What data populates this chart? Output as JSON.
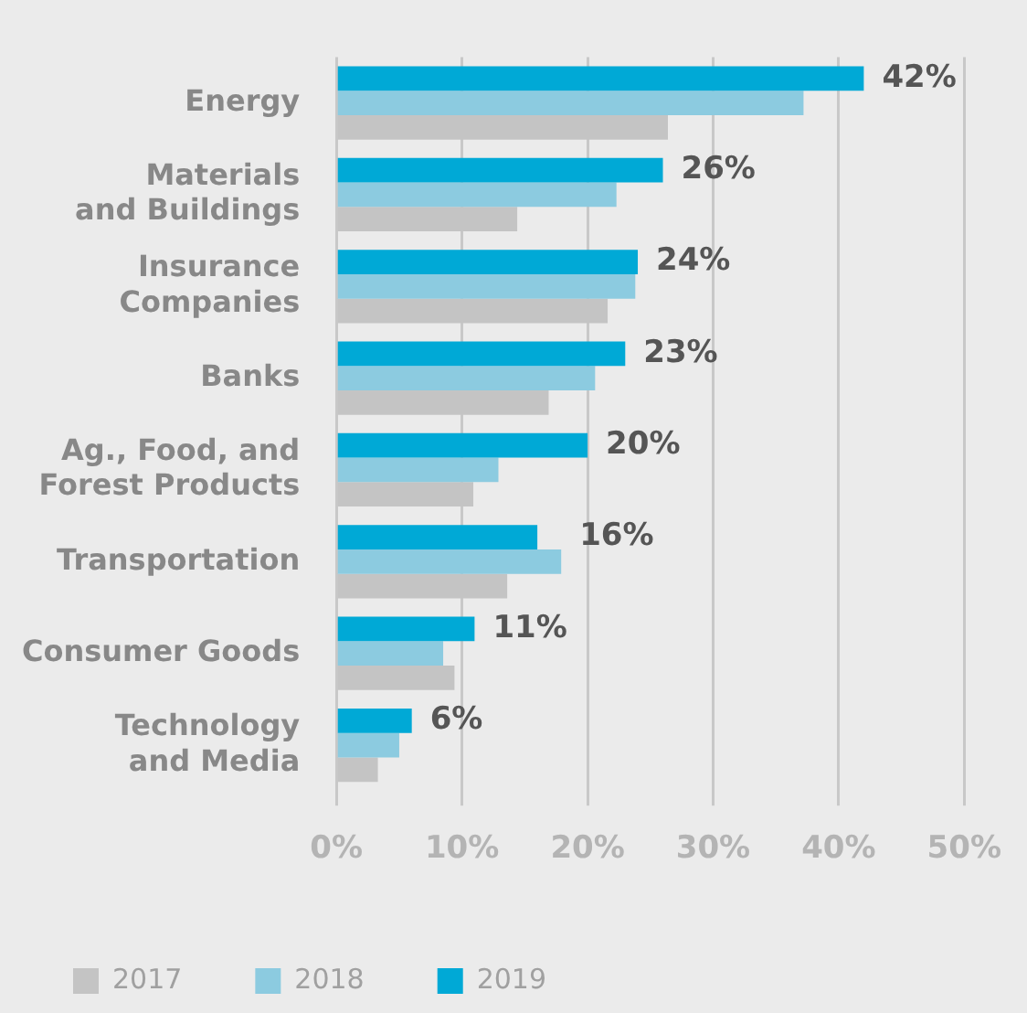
{
  "chart_data": {
    "type": "bar",
    "orientation": "horizontal",
    "categories": [
      "Energy",
      "Materials\nand Buildings",
      "Insurance\nCompanies",
      "Banks",
      "Ag., Food, and\nForest Products",
      "Transportation",
      "Consumer Goods",
      "Technology\nand Media"
    ],
    "series": [
      {
        "name": "2017",
        "color": "#c4c4c4",
        "values": [
          26.4,
          14.4,
          21.6,
          16.9,
          10.9,
          13.6,
          9.4,
          3.3
        ]
      },
      {
        "name": "2018",
        "color": "#8ccbe0",
        "values": [
          37.2,
          22.3,
          23.8,
          20.6,
          12.9,
          17.9,
          8.5,
          5.0
        ]
      },
      {
        "name": "2019",
        "color": "#00a9d6",
        "values": [
          42,
          26,
          24,
          23,
          20,
          16,
          11,
          6
        ],
        "value_labels": [
          "42%",
          "26%",
          "24%",
          "23%",
          "20%",
          "16%",
          "11%",
          "6%"
        ]
      }
    ],
    "xlim": [
      0,
      50
    ],
    "xticks": [
      {
        "value": 0,
        "label": "0%"
      },
      {
        "value": 10,
        "label": "10%"
      },
      {
        "value": 20,
        "label": "20%"
      },
      {
        "value": 30,
        "label": "30%"
      },
      {
        "value": 40,
        "label": "40%"
      },
      {
        "value": 50,
        "label": "50%"
      }
    ],
    "grid": "x",
    "legend": "bottom left"
  }
}
